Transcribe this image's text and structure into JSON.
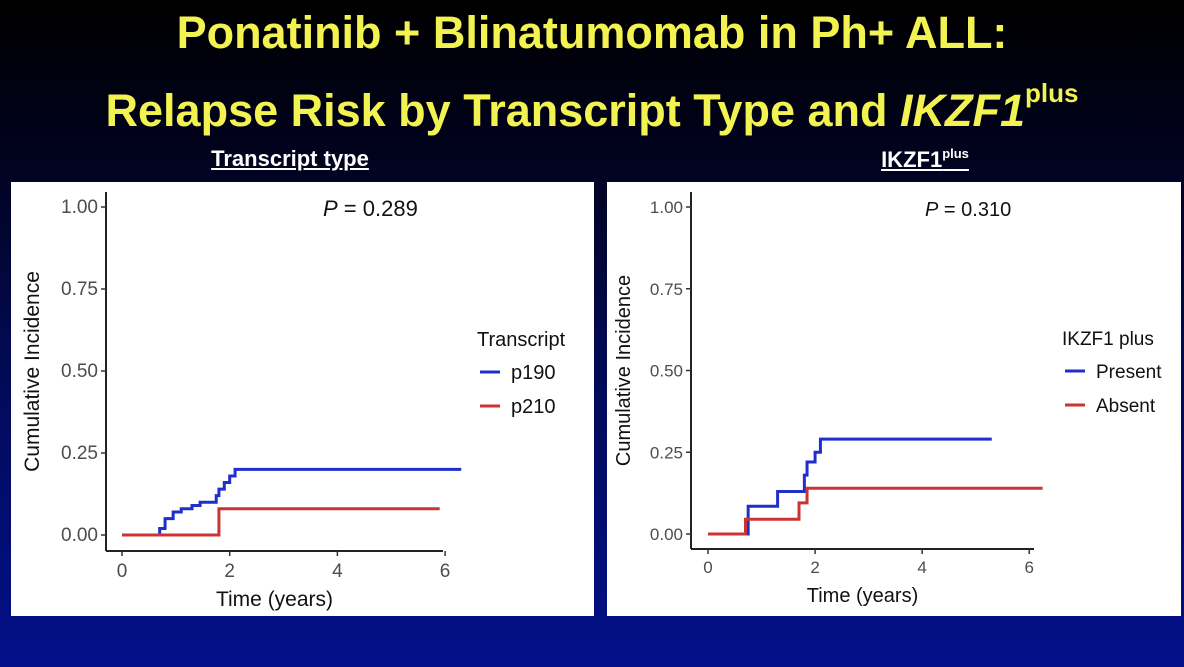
{
  "title": {
    "line1": "Ponatinib + Blinatumomab in Ph+ ALL:",
    "line2_prefix": "Relapse Risk by Transcript Type and ",
    "line2_italic": "IKZF1",
    "line2_sup": "plus"
  },
  "chart_data": [
    {
      "type": "line",
      "panel_title": "Transcript type",
      "xlabel": "Time (years)",
      "ylabel": "Cumulative Incidence",
      "xlim": [
        0,
        6.5
      ],
      "ylim": [
        0,
        1.0
      ],
      "x_ticks": [
        "0",
        "2",
        "4",
        "6"
      ],
      "y_ticks": [
        "0.00",
        "0.25",
        "0.50",
        "0.75",
        "1.00"
      ],
      "p_prefix": "P",
      "p_value": " = 0.289",
      "legend_title": "Transcript",
      "grid": false,
      "legend_position": "right",
      "series": [
        {
          "name": "p190",
          "color": "#1f2fcc",
          "x": [
            0,
            0.7,
            0.8,
            0.95,
            1.1,
            1.3,
            1.45,
            1.75,
            1.8,
            1.9,
            2.0,
            2.1,
            6.3
          ],
          "y": [
            0,
            0.02,
            0.05,
            0.07,
            0.08,
            0.09,
            0.1,
            0.12,
            0.14,
            0.16,
            0.18,
            0.2,
            0.2
          ]
        },
        {
          "name": "p210",
          "color": "#cc3333",
          "x": [
            0,
            1.8,
            5.9
          ],
          "y": [
            0,
            0.08,
            0.08
          ]
        }
      ]
    },
    {
      "type": "line",
      "panel_title": "IKZF1",
      "panel_title_sup": "plus",
      "xlabel": "Time (years)",
      "ylabel": "Cumulative Incidence",
      "xlim": [
        0,
        6.5
      ],
      "ylim": [
        0,
        1.0
      ],
      "x_ticks": [
        "0",
        "2",
        "4",
        "6"
      ],
      "y_ticks": [
        "0.00",
        "0.25",
        "0.50",
        "0.75",
        "1.00"
      ],
      "p_prefix": "P",
      "p_value": " = 0.310",
      "legend_title": "IKZF1 plus",
      "grid": false,
      "legend_position": "right",
      "series": [
        {
          "name": "Present",
          "color": "#1f2fcc",
          "x": [
            0,
            0.75,
            1.3,
            1.8,
            1.85,
            2.0,
            2.1,
            5.3
          ],
          "y": [
            0,
            0.085,
            0.13,
            0.18,
            0.22,
            0.25,
            0.29,
            0.29
          ]
        },
        {
          "name": "Absent",
          "color": "#cc3333",
          "x": [
            0,
            0.7,
            1.7,
            1.85,
            6.25
          ],
          "y": [
            0,
            0.045,
            0.095,
            0.14,
            0.14
          ]
        }
      ]
    }
  ]
}
